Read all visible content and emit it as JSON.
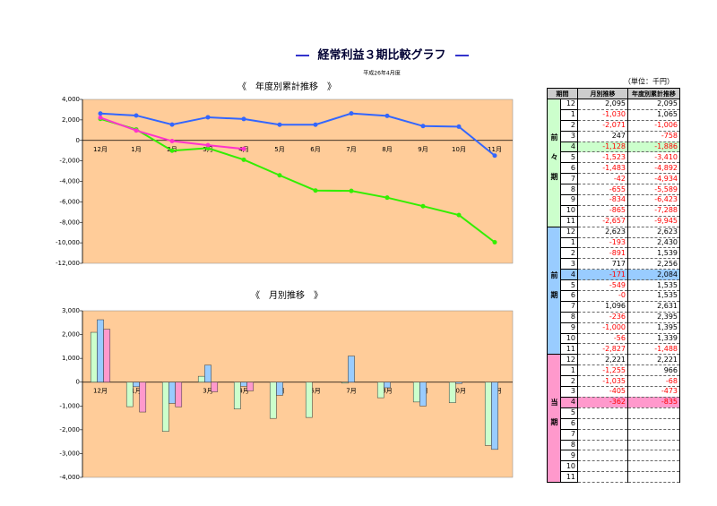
{
  "title": "経常利益３期比較グラフ",
  "subtitle": "平成26年4月度",
  "chart_data": [
    {
      "type": "line",
      "title": "《　年度別累計推移　》",
      "plot_color": "#ffcc99",
      "categories": [
        "12月",
        "1月",
        "2月",
        "3月",
        "4月",
        "5月",
        "6月",
        "7月",
        "8月",
        "9月",
        "10月",
        "11月"
      ],
      "ylim": [
        -12000,
        4000
      ],
      "yticks": [
        {
          "value": 4000,
          "label": "4,000"
        },
        {
          "value": 2000,
          "label": "2,000"
        },
        0,
        {
          "value": -2000,
          "label": "-2,000"
        },
        {
          "value": -4000,
          "label": "-4,000"
        },
        {
          "value": -6000,
          "label": "-6,000"
        },
        {
          "value": -8000,
          "label": "-8,000"
        },
        {
          "value": -10000,
          "label": "-10,000"
        },
        {
          "value": -12000,
          "label": "-12,000"
        }
      ],
      "series": [
        {
          "color": "#33ee00",
          "values": [
            2095,
            1065,
            -1006,
            -758,
            -1886,
            -3410,
            -4892,
            -4934,
            -5589,
            -6423,
            -7288,
            -9945
          ]
        },
        {
          "color": "#3366ff",
          "values": [
            2623,
            2430,
            1539,
            2256,
            2084,
            1535,
            1535,
            2631,
            2395,
            1395,
            1339,
            -1488
          ]
        },
        {
          "color": "#ff33cc",
          "values": [
            2221,
            966,
            -68,
            -473,
            -835,
            null,
            null,
            null,
            null,
            null,
            null,
            null
          ]
        }
      ]
    },
    {
      "type": "bar",
      "title": "《　月別推移　》",
      "plot_color": "#ffcc99",
      "categories": [
        "12月",
        "1月",
        "2月",
        "3月",
        "4月",
        "5月",
        "6月",
        "7月",
        "8月",
        "9月",
        "10月",
        "11月"
      ],
      "ylim": [
        -4000,
        3000
      ],
      "yticks": [
        {
          "value": 3000,
          "label": "3,000"
        },
        {
          "value": 2000,
          "label": "2,000"
        },
        {
          "value": 1000,
          "label": "1,000"
        },
        0,
        {
          "value": -1000,
          "label": "-1,000"
        },
        {
          "value": -2000,
          "label": "-2,000"
        },
        {
          "value": -3000,
          "label": "-3,000"
        },
        {
          "value": -4000,
          "label": "-4,000"
        }
      ],
      "series": [
        {
          "color": "#ccffcc",
          "values": [
            2095,
            -1030,
            -2071,
            247,
            -1128,
            -1523,
            -1483,
            -42,
            -655,
            -834,
            -865,
            -2657
          ]
        },
        {
          "color": "#99ccff",
          "values": [
            2623,
            -193,
            -891,
            717,
            -171,
            -549,
            0,
            1096,
            -236,
            -1000,
            -56,
            -2827
          ]
        },
        {
          "color": "#ff99cc",
          "values": [
            2221,
            -1255,
            -1035,
            -405,
            -362,
            null,
            null,
            null,
            null,
            null,
            null,
            null
          ]
        }
      ]
    }
  ],
  "table": {
    "unit": "（単位：千円）",
    "header": [
      "期間",
      "月別推移",
      "年度別累計推移"
    ],
    "highlight_row": 4,
    "groups": [
      {
        "label": "前々期",
        "color": "#ccffcc",
        "rows": [
          [
            "12",
            "2,095",
            "2,095"
          ],
          [
            "1",
            "-1,030",
            "1,065"
          ],
          [
            "2",
            "-2,071",
            "-1,006"
          ],
          [
            "3",
            "247",
            "-758"
          ],
          [
            "4",
            "-1,128",
            "-1,886"
          ],
          [
            "5",
            "-1,523",
            "-3,410"
          ],
          [
            "6",
            "-1,483",
            "-4,892"
          ],
          [
            "7",
            "-42",
            "-4,934"
          ],
          [
            "8",
            "-655",
            "-5,589"
          ],
          [
            "9",
            "-834",
            "-6,423"
          ],
          [
            "10",
            "-865",
            "-7,288"
          ],
          [
            "11",
            "-2,657",
            "-9,945"
          ]
        ]
      },
      {
        "label": "前期",
        "color": "#99ccff",
        "rows": [
          [
            "12",
            "2,623",
            "2,623"
          ],
          [
            "1",
            "-193",
            "2,430"
          ],
          [
            "2",
            "-891",
            "1,539"
          ],
          [
            "3",
            "717",
            "2,256"
          ],
          [
            "4",
            "-171",
            "2,084"
          ],
          [
            "5",
            "-549",
            "1,535"
          ],
          [
            "6",
            "-0",
            "1,535"
          ],
          [
            "7",
            "1,096",
            "2,631"
          ],
          [
            "8",
            "-236",
            "2,395"
          ],
          [
            "9",
            "-1,000",
            "1,395"
          ],
          [
            "10",
            "-56",
            "1,339"
          ],
          [
            "11",
            "-2,827",
            "-1,488"
          ]
        ]
      },
      {
        "label": "当期",
        "color": "#ff99cc",
        "rows": [
          [
            "12",
            "2,221",
            "2,221"
          ],
          [
            "1",
            "-1,255",
            "966"
          ],
          [
            "2",
            "-1,035",
            "-68"
          ],
          [
            "3",
            "-405",
            "-473"
          ],
          [
            "4",
            "-362",
            "-835"
          ],
          [
            "5"
          ],
          [
            "6"
          ],
          [
            "7"
          ],
          [
            "8"
          ],
          [
            "9"
          ],
          [
            "10"
          ],
          [
            "11"
          ]
        ]
      }
    ]
  }
}
